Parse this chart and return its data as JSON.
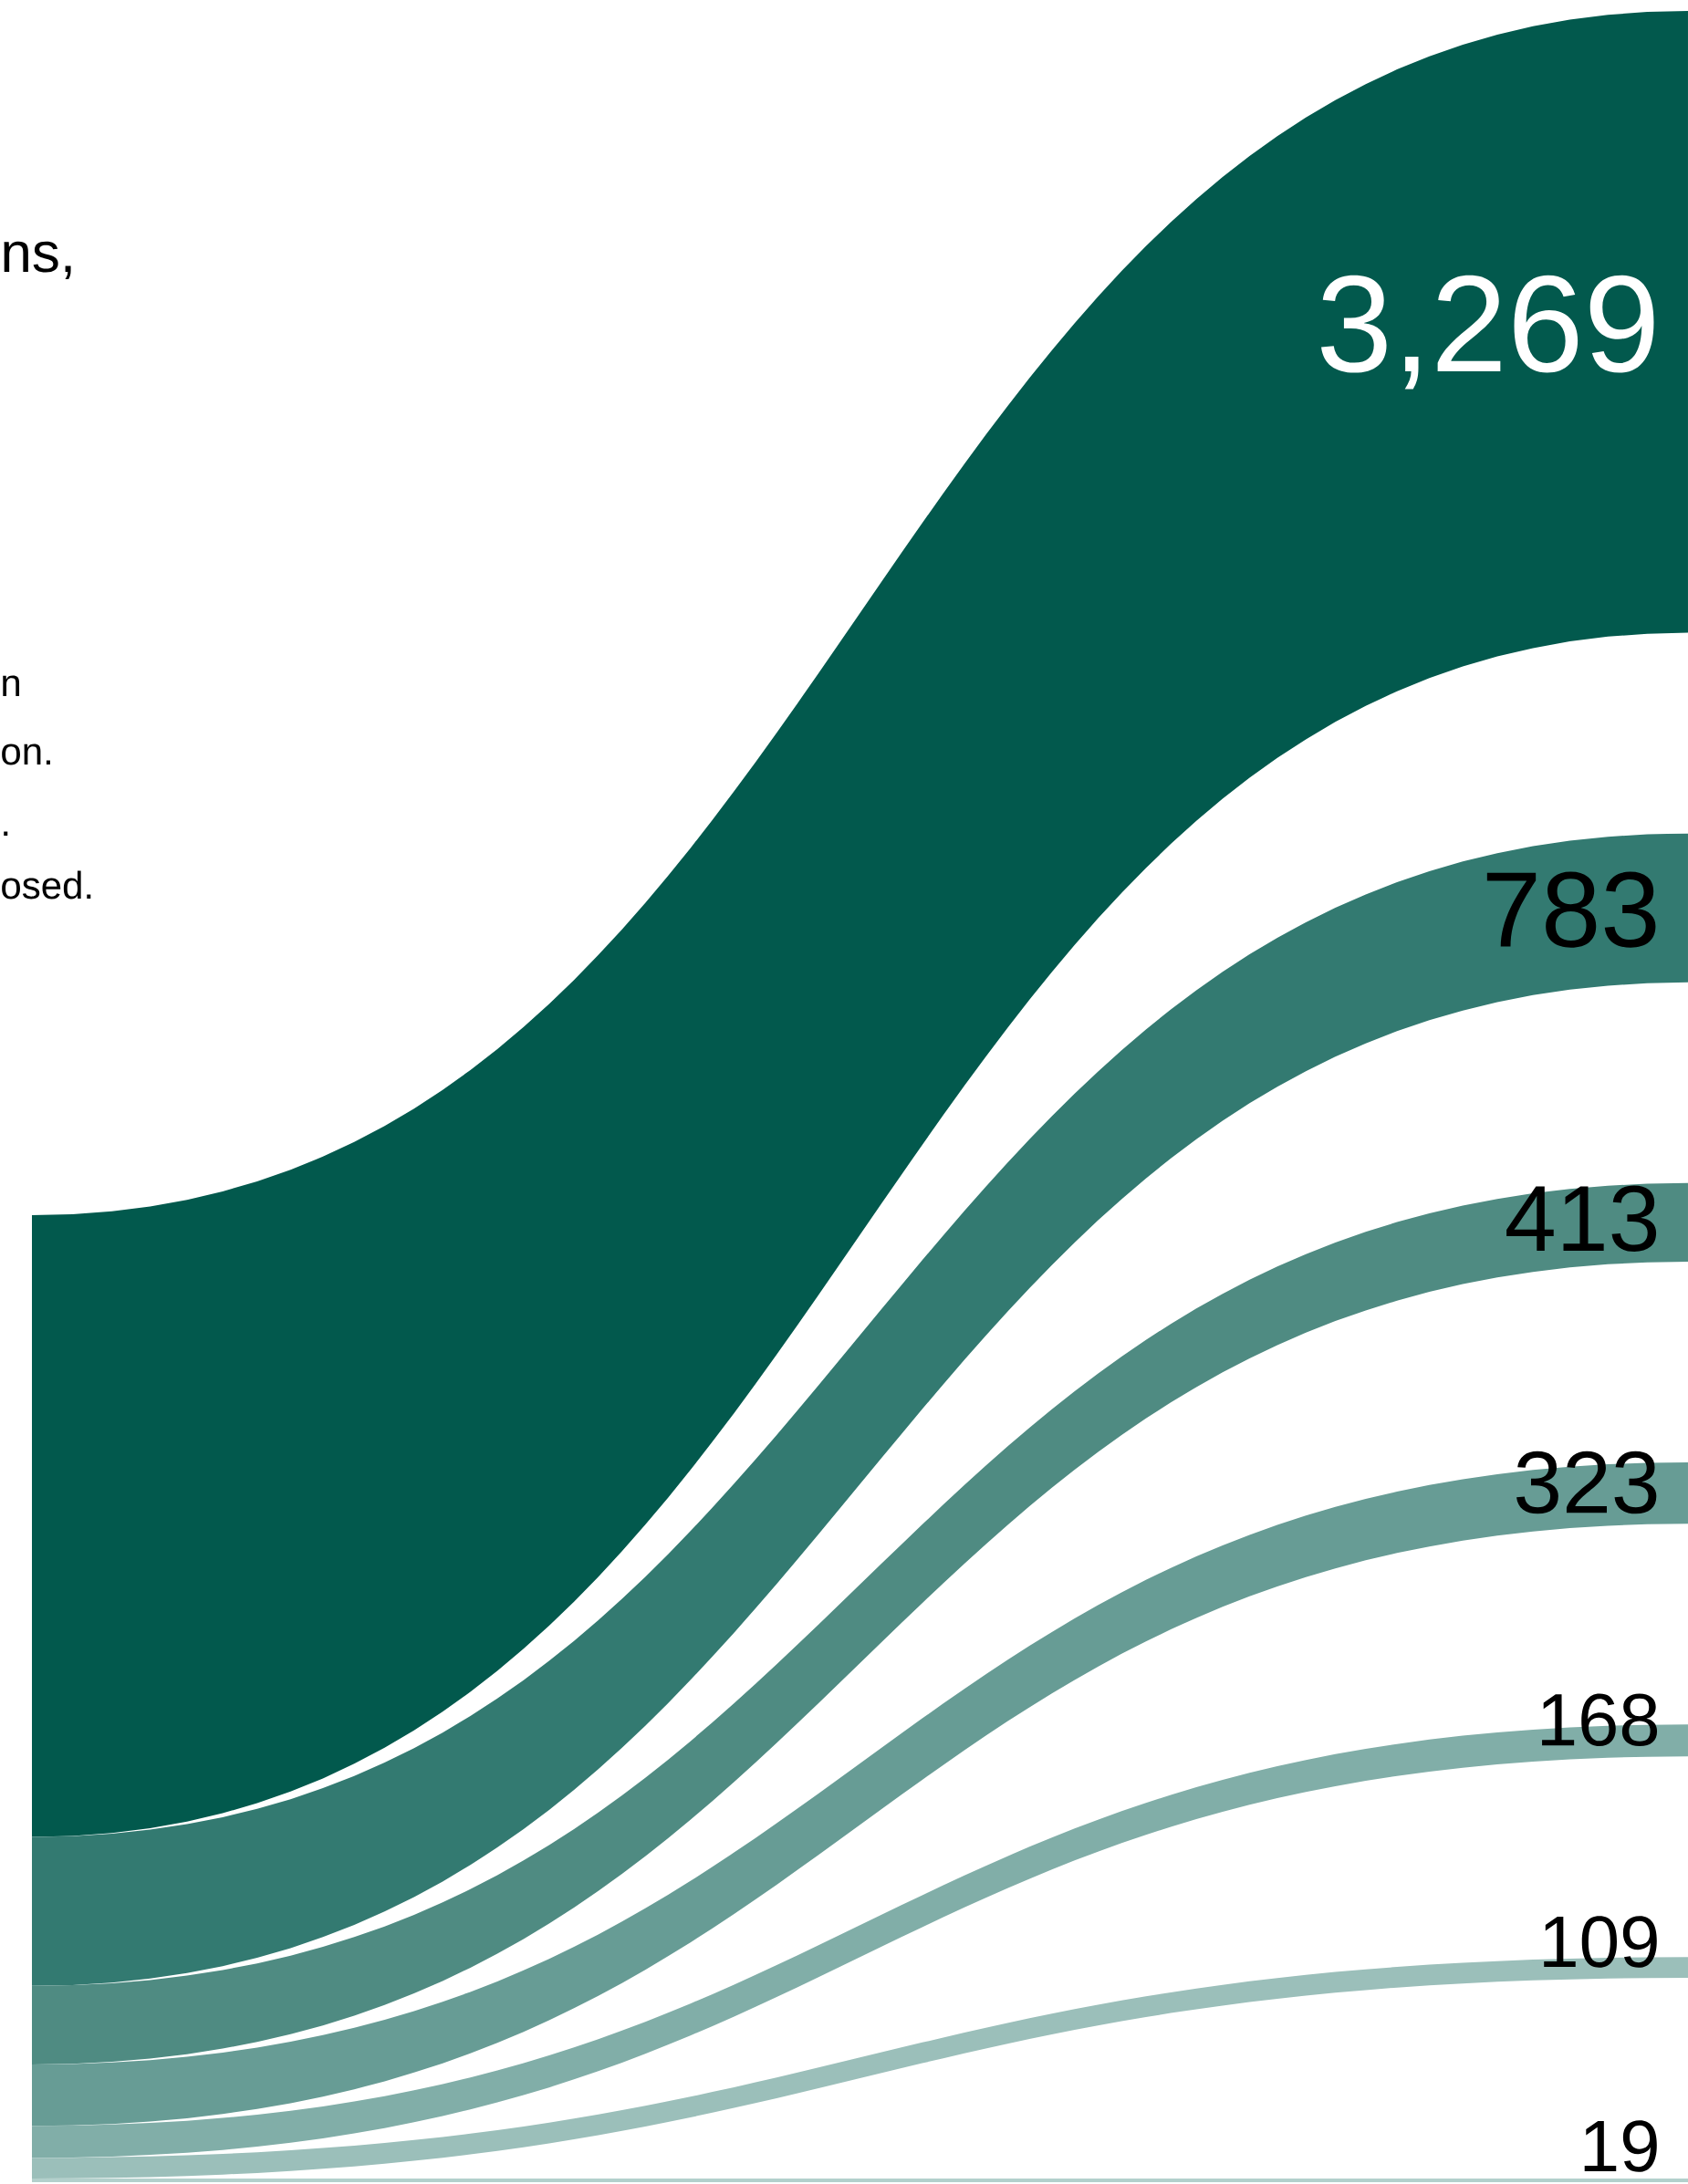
{
  "chart_data": {
    "type": "other",
    "categories": [
      null,
      null,
      null,
      null,
      null,
      null,
      null
    ],
    "values": [
      3269,
      783,
      413,
      323,
      168,
      109,
      19
    ],
    "colors": [
      "#02594d",
      "#337a71",
      "#4f8b82",
      "#679c95",
      "#81aea8",
      "#9bbfba",
      "#b3d0cc"
    ],
    "value_labels": [
      "3,269",
      "783",
      "413",
      "323",
      "168",
      "109",
      "19"
    ],
    "annotations": [
      "ns,",
      "n",
      "on.",
      ".",
      "osed."
    ]
  }
}
